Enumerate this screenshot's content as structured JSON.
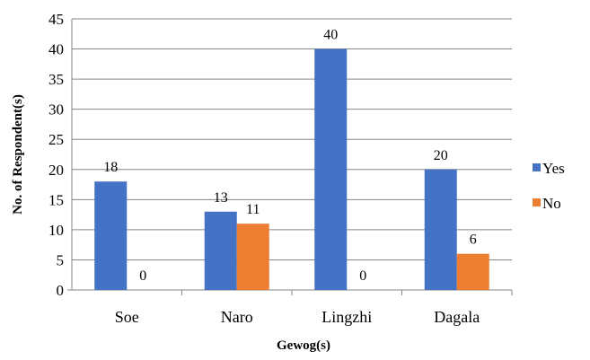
{
  "chart_data": {
    "type": "bar",
    "xlabel": "Gewog(s)",
    "ylabel": "No. of Respondent(s)",
    "categories": [
      "Soe",
      "Naro",
      "Lingzhi",
      "Dagala"
    ],
    "series": [
      {
        "name": "Yes",
        "values": [
          18,
          13,
          40,
          20
        ],
        "color": "#4472c4"
      },
      {
        "name": "No",
        "values": [
          0,
          11,
          0,
          6
        ],
        "color": "#ed7d31"
      }
    ],
    "ylim": [
      0,
      45
    ],
    "yticks": [
      0,
      5,
      10,
      15,
      20,
      25,
      30,
      35,
      40,
      45
    ],
    "grid": true,
    "legend_position": "right"
  }
}
